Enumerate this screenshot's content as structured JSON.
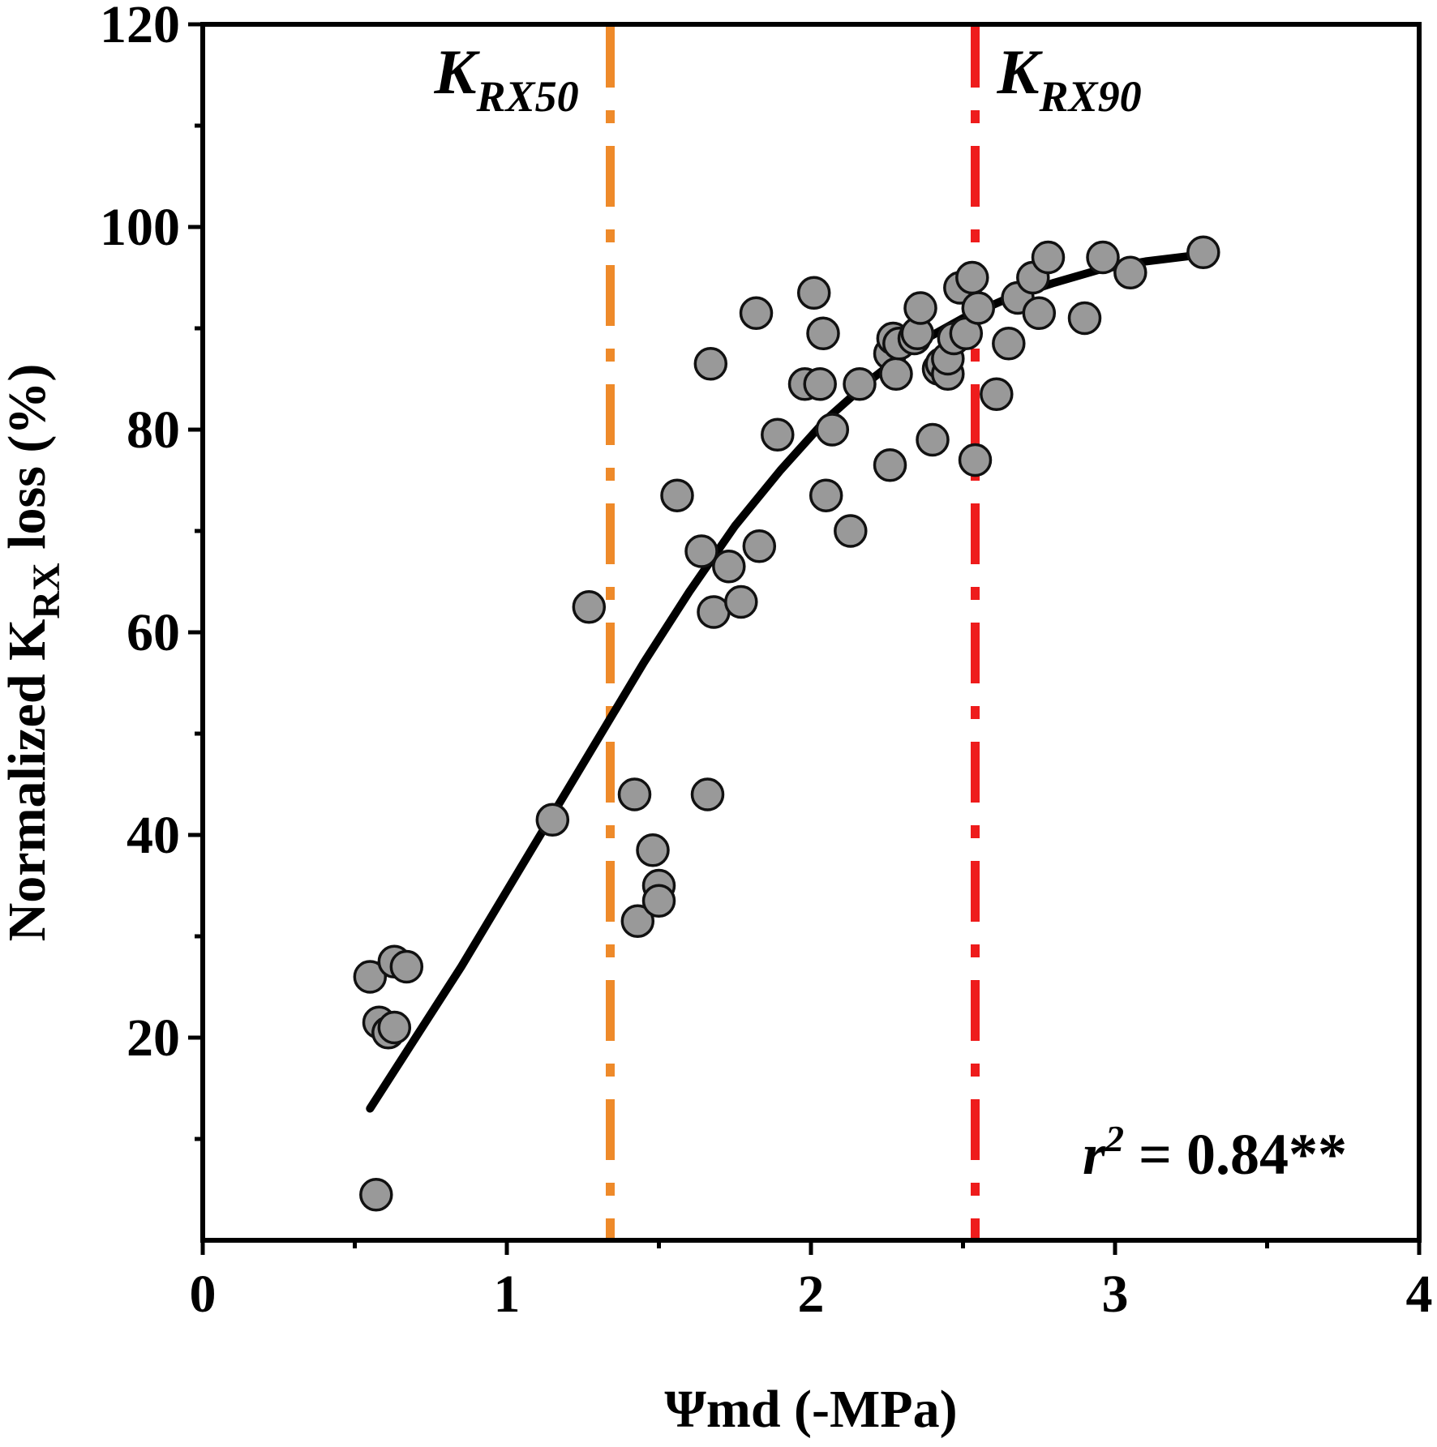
{
  "chart_data": {
    "type": "scatter",
    "title": "",
    "xlabel": "Ψmd (-MPa)",
    "ylabel": {
      "prefix": "Normalized  K",
      "subscript": "RX",
      "suffix": " loss (%)"
    },
    "xlim": [
      0,
      4
    ],
    "ylim": [
      0,
      120
    ],
    "xticks": [
      0,
      1,
      2,
      3,
      4
    ],
    "xtick_labels": [
      "0",
      "1",
      "2",
      "3",
      "4"
    ],
    "yticks": [
      20,
      40,
      60,
      80,
      100,
      120
    ],
    "ytick_labels": [
      "20",
      "40",
      "60",
      "80",
      "100",
      "120"
    ],
    "x_minor_ticks": [
      0.5,
      1.5,
      2.5,
      3.5
    ],
    "y_minor_ticks": [
      10,
      30,
      50,
      70,
      90,
      110
    ],
    "grid": false,
    "points": {
      "fill": "#999999",
      "stroke": "#111111",
      "x": [
        0.55,
        0.58,
        0.61,
        0.63,
        0.63,
        0.67,
        0.57,
        1.15,
        1.27,
        1.42,
        1.43,
        1.48,
        1.5,
        1.5,
        1.56,
        1.64,
        1.66,
        1.67,
        1.68,
        1.73,
        1.77,
        1.82,
        1.83,
        1.89,
        1.98,
        2.01,
        2.03,
        2.04,
        2.05,
        2.07,
        2.13,
        2.16,
        2.26,
        2.26,
        2.27,
        2.28,
        2.29,
        2.34,
        2.35,
        2.36,
        2.4,
        2.42,
        2.43,
        2.45,
        2.45,
        2.47,
        2.49,
        2.51,
        2.53,
        2.54,
        2.55,
        2.61,
        2.65,
        2.68,
        2.73,
        2.75,
        2.78,
        2.9,
        2.96,
        3.05,
        3.29
      ],
      "y": [
        26.0,
        21.5,
        20.5,
        27.5,
        21.0,
        27.0,
        4.5,
        41.5,
        62.5,
        44.0,
        31.5,
        38.5,
        35.0,
        33.5,
        73.5,
        68.0,
        44.0,
        86.5,
        62.0,
        66.5,
        63.0,
        91.5,
        68.5,
        79.5,
        84.5,
        93.5,
        84.5,
        89.5,
        73.5,
        80.0,
        70.0,
        84.5,
        76.5,
        87.5,
        89.0,
        85.5,
        88.5,
        89.0,
        89.5,
        92.0,
        79.0,
        86.0,
        86.5,
        85.5,
        87.0,
        89.0,
        94.0,
        89.5,
        95.0,
        77.0,
        92.0,
        83.5,
        88.5,
        93.0,
        95.0,
        91.5,
        97.0,
        91.0,
        97.0,
        95.5,
        97.5
      ]
    },
    "fit": {
      "type": "sigmoid",
      "color": "#000000",
      "x": [
        0.55,
        0.7,
        0.85,
        1.0,
        1.15,
        1.3,
        1.45,
        1.6,
        1.75,
        1.9,
        2.05,
        2.2,
        2.35,
        2.5,
        2.65,
        2.8,
        2.95,
        3.1,
        3.29
      ],
      "y": [
        13.0,
        20.0,
        27.0,
        34.5,
        42.0,
        49.5,
        57.0,
        64.0,
        70.5,
        76.0,
        81.0,
        85.0,
        88.5,
        91.0,
        93.0,
        94.5,
        95.8,
        96.6,
        97.3
      ]
    },
    "reference_lines": [
      {
        "x": 1.34,
        "color": "#ee8a2a",
        "label_main": "K",
        "label_sub": "RX50"
      },
      {
        "x": 2.54,
        "color": "#ee1c1c",
        "label_main": "K",
        "label_sub": "RX90"
      }
    ],
    "annotation": {
      "main": "r",
      "sup": "2",
      "rest": " = 0.84**"
    }
  }
}
